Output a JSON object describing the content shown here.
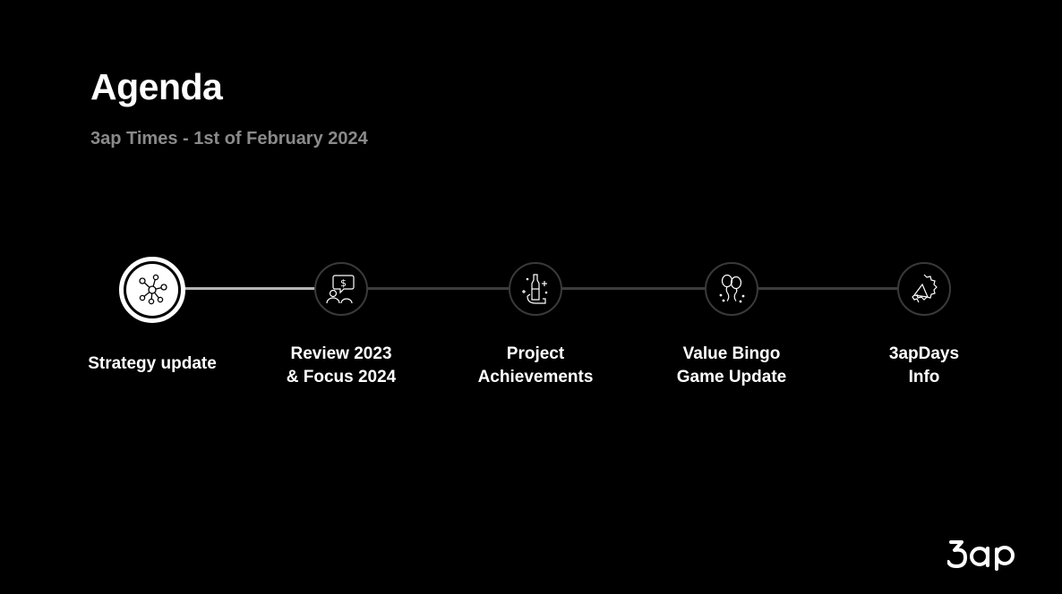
{
  "slide": {
    "title": "Agenda",
    "subtitle": "3ap Times - 1st of February 2024"
  },
  "agenda": {
    "items": [
      {
        "label": "Strategy update",
        "icon": "network-icon",
        "active": true
      },
      {
        "label": "Review 2023\n& Focus 2024",
        "icon": "speech-dollar-icon",
        "active": false
      },
      {
        "label": "Project\nAchievements",
        "icon": "celebration-bottle-icon",
        "active": false
      },
      {
        "label": "Value Bingo\nGame Update",
        "icon": "balloons-icon",
        "active": false
      },
      {
        "label": "3apDays\nInfo",
        "icon": "megaphone-icon",
        "active": false
      }
    ]
  },
  "brand": {
    "logo_text": "3ap"
  },
  "colors": {
    "background": "#000000",
    "text": "#ffffff",
    "subtitle": "#8a8a8a",
    "track_active": "#b5b5b5",
    "track_inactive": "#3c3c3c"
  }
}
